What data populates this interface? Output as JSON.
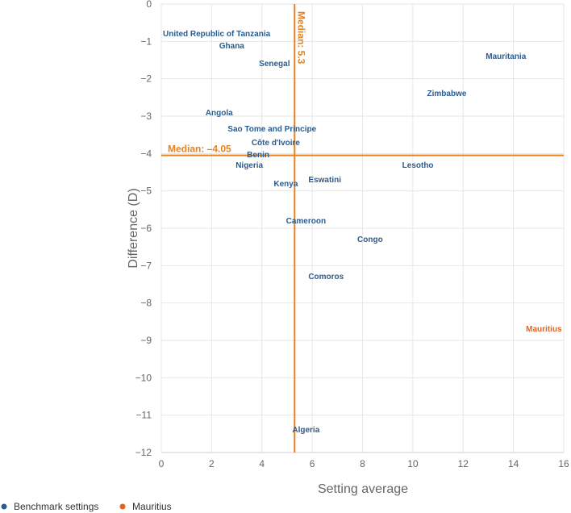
{
  "chart_data": {
    "type": "scatter",
    "xlabel": "Setting average",
    "ylabel": "Difference (D)",
    "xlim": [
      0,
      16
    ],
    "ylim": [
      -12,
      0
    ],
    "xticks": [
      0,
      2,
      4,
      6,
      8,
      10,
      12,
      14,
      16
    ],
    "yticks": [
      0,
      -1,
      -2,
      -3,
      -4,
      -5,
      -6,
      -7,
      -8,
      -9,
      -10,
      -11,
      -12
    ],
    "grid": true,
    "legend_placement": "bottom-left",
    "colors": {
      "benchmark": "#2b5c8f",
      "highlight": "#e8621e",
      "median": "#e8821e"
    },
    "medians": {
      "x": {
        "value": 5.3,
        "label": "Median: 5.3"
      },
      "y": {
        "value": -4.05,
        "label": "Median: –4.05"
      }
    },
    "series": [
      {
        "name": "Benchmark settings",
        "points": [
          {
            "label": "United Republic of Tanzania",
            "x": 2.15,
            "y": -0.78
          },
          {
            "label": "Ghana",
            "x": 2.8,
            "y": -0.86
          },
          {
            "label": "Senegal",
            "x": 4.5,
            "y": -1.58
          },
          {
            "label": "Mauritania",
            "x": 13.7,
            "y": -1.38
          },
          {
            "label": "Zimbabwe",
            "x": 11.35,
            "y": -2.37
          },
          {
            "label": "Angola",
            "x": 2.3,
            "y": -2.89
          },
          {
            "label": "Sao Tome and Principe",
            "x": 4.4,
            "y": -3.09
          },
          {
            "label": "Côte d'Ivoire",
            "x": 4.55,
            "y": -3.69
          },
          {
            "label": "Benin",
            "x": 3.85,
            "y": -3.78
          },
          {
            "label": "Nigeria",
            "x": 3.5,
            "y": -4.3
          },
          {
            "label": "Lesotho",
            "x": 10.2,
            "y": -4.3
          },
          {
            "label": "Eswatini",
            "x": 6.5,
            "y": -4.68
          },
          {
            "label": "Kenya",
            "x": 4.95,
            "y": -4.79
          },
          {
            "label": "Cameroon",
            "x": 5.75,
            "y": -5.78
          },
          {
            "label": "Congo",
            "x": 8.3,
            "y": -6.28
          },
          {
            "label": "Comoros",
            "x": 6.55,
            "y": -7.27
          },
          {
            "label": "Algeria",
            "x": 5.75,
            "y": -11.37
          }
        ]
      },
      {
        "name": "Mauritius",
        "points": [
          {
            "label": "Mauritius",
            "x": 15.5,
            "y": -8.68
          }
        ]
      }
    ]
  }
}
